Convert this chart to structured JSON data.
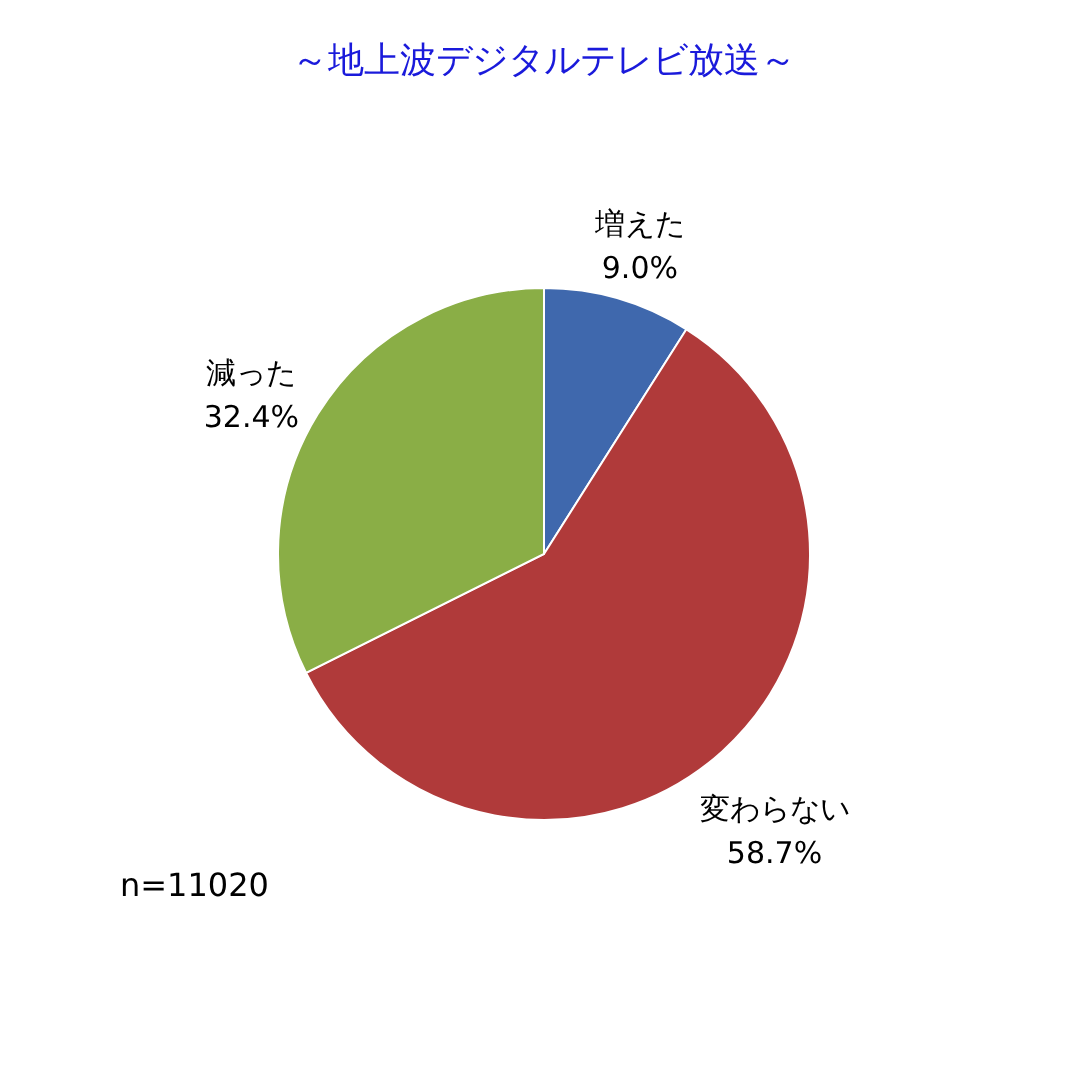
{
  "chart_data": {
    "type": "pie",
    "title": "～地上波デジタルテレビ放送～",
    "categories": [
      "増えた",
      "変わらない",
      "減った"
    ],
    "values": [
      9.0,
      58.7,
      32.4
    ],
    "value_labels": [
      "9.0%",
      "58.7%",
      "32.4%"
    ],
    "colors": [
      "#3f68ad",
      "#b03a3a",
      "#8aae46"
    ],
    "annotations": [
      "n=11020"
    ]
  }
}
